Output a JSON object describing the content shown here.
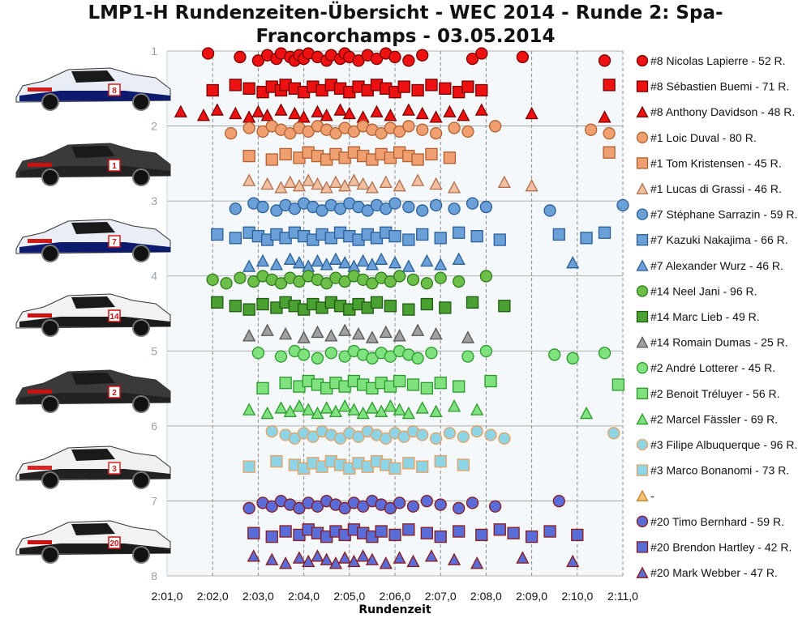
{
  "chart_data": {
    "type": "scatter",
    "title": "LMP1-H Rundenzeiten-Übersicht - WEC 2014 - Runde 2: Spa-Francorchamps - 03.05.2014",
    "title_lines": [
      "LMP1-H Rundenzeiten-Übersicht - WEC 2014 - Runde 2: Spa-",
      "Francorchamps - 03.05.2014"
    ],
    "xlabel": "Rundenzeit",
    "ylabel": "",
    "xlim": [
      121,
      131
    ],
    "ylim": [
      1,
      8
    ],
    "y_inverted": true,
    "grid": true,
    "legend_position": "right",
    "x_ticks": [
      {
        "value": 121,
        "label": "2:01,0"
      },
      {
        "value": 122,
        "label": "2:02,0"
      },
      {
        "value": 123,
        "label": "2:03,0"
      },
      {
        "value": 124,
        "label": "2:04,0"
      },
      {
        "value": 125,
        "label": "2:05,0"
      },
      {
        "value": 126,
        "label": "2:06,0"
      },
      {
        "value": 127,
        "label": "2:07,0"
      },
      {
        "value": 128,
        "label": "2:08,0"
      },
      {
        "value": 129,
        "label": "2:09,0"
      },
      {
        "value": 130,
        "label": "2:10,0"
      },
      {
        "value": 131,
        "label": "2:11,0"
      }
    ],
    "y_ticks": [
      {
        "value": 1,
        "label": "1"
      },
      {
        "value": 2,
        "label": "2"
      },
      {
        "value": 3,
        "label": "3"
      },
      {
        "value": 4,
        "label": "4"
      },
      {
        "value": 5,
        "label": "5"
      },
      {
        "value": 6,
        "label": "6"
      },
      {
        "value": 7,
        "label": "7"
      },
      {
        "value": 8,
        "label": "8"
      }
    ],
    "cars": [
      {
        "car": "#8",
        "stripe": "#0d1b6e",
        "accent": "#d11a1a",
        "body": "#e9eef6",
        "num": "8"
      },
      {
        "car": "#1",
        "stripe": "#222222",
        "accent": "#cc1111",
        "body": "#3a3a3a",
        "num": "1"
      },
      {
        "car": "#7",
        "stripe": "#0d1b6e",
        "accent": "#d11a1a",
        "body": "#e9eef6",
        "num": "7"
      },
      {
        "car": "#14",
        "stripe": "#1b1b1b",
        "accent": "#cc1111",
        "body": "#f2f2f2",
        "num": "14"
      },
      {
        "car": "#2",
        "stripe": "#222222",
        "accent": "#cc1111",
        "body": "#3a3a3a",
        "num": "2"
      },
      {
        "car": "#3",
        "stripe": "#222222",
        "accent": "#dd2222",
        "body": "#f0f0f0",
        "num": "3"
      },
      {
        "car": "#20",
        "stripe": "#1b1b1b",
        "accent": "#cc1111",
        "body": "#f2f2f2",
        "num": "20"
      }
    ],
    "series": [
      {
        "name": "#8 Nicolas Lapierre - 52 R.",
        "marker": "circle",
        "fill": "#ee1111",
        "stroke": "#770000",
        "y": 1.08,
        "x": [
          121.9,
          122.6,
          123.0,
          123.2,
          123.4,
          123.5,
          123.7,
          123.8,
          123.9,
          124.0,
          124.1,
          124.3,
          124.5,
          124.6,
          124.8,
          124.9,
          125.0,
          125.2,
          125.4,
          125.6,
          125.8,
          126.0,
          126.3,
          126.6,
          127.7,
          127.9,
          128.8,
          130.6
        ]
      },
      {
        "name": "#8 Sébastien Buemi - 71 R.",
        "marker": "square",
        "fill": "#ee1111",
        "stroke": "#770000",
        "y": 1.5,
        "x": [
          122.0,
          122.5,
          122.8,
          123.1,
          123.3,
          123.5,
          123.6,
          123.8,
          124.0,
          124.2,
          124.4,
          124.6,
          124.8,
          125.0,
          125.2,
          125.4,
          125.6,
          125.8,
          126.0,
          126.2,
          126.5,
          126.8,
          127.1,
          127.4,
          127.6,
          127.9,
          130.7
        ]
      },
      {
        "name": "#8 Anthony Davidson - 48 R.",
        "marker": "triangle",
        "fill": "#ee1111",
        "stroke": "#770000",
        "y": 1.83,
        "x": [
          121.3,
          121.8,
          122.1,
          122.5,
          122.8,
          123.0,
          123.2,
          123.5,
          123.8,
          124.0,
          124.3,
          124.5,
          124.8,
          125.0,
          125.3,
          125.6,
          125.9,
          126.3,
          126.6,
          126.9,
          127.2,
          127.5,
          127.9,
          129.0,
          130.6
        ]
      },
      {
        "name": "#1 Loic Duval - 80 R.",
        "marker": "circle",
        "fill": "#f0a070",
        "stroke": "#b06030",
        "y": 2.05,
        "x": [
          122.4,
          122.8,
          123.1,
          123.3,
          123.5,
          123.7,
          123.9,
          124.1,
          124.3,
          124.5,
          124.7,
          124.9,
          125.1,
          125.3,
          125.5,
          125.7,
          125.9,
          126.1,
          126.3,
          126.6,
          126.9,
          127.3,
          127.6,
          128.2,
          130.3,
          130.7
        ]
      },
      {
        "name": "#1 Tom Kristensen - 45 R.",
        "marker": "square",
        "fill": "#f0a070",
        "stroke": "#b06030",
        "y": 2.4,
        "x": [
          122.8,
          123.3,
          123.6,
          123.9,
          124.1,
          124.3,
          124.5,
          124.7,
          124.9,
          125.1,
          125.3,
          125.5,
          125.7,
          125.9,
          126.1,
          126.3,
          126.5,
          126.8,
          127.2,
          130.7
        ]
      },
      {
        "name": "#1 Lucas di Grassi - 46 R.",
        "marker": "triangle",
        "fill": "#f0c0a0",
        "stroke": "#b07050",
        "y": 2.77,
        "x": [
          122.8,
          123.2,
          123.5,
          123.7,
          123.9,
          124.1,
          124.3,
          124.5,
          124.7,
          124.9,
          125.1,
          125.3,
          125.5,
          125.8,
          126.1,
          126.5,
          126.9,
          127.3,
          128.4,
          129.0
        ]
      },
      {
        "name": "#7 Stéphane Sarrazin - 59 R.",
        "marker": "circle",
        "fill": "#6a9fd8",
        "stroke": "#2a5f98",
        "y": 3.08,
        "x": [
          122.5,
          122.9,
          123.1,
          123.4,
          123.6,
          123.8,
          124.0,
          124.2,
          124.4,
          124.6,
          124.8,
          125.0,
          125.2,
          125.4,
          125.6,
          125.8,
          126.0,
          126.3,
          126.6,
          126.9,
          127.3,
          127.7,
          128.0,
          129.4,
          131.0
        ]
      },
      {
        "name": "#7 Kazuki Nakajima - 66 R.",
        "marker": "square",
        "fill": "#6a9fd8",
        "stroke": "#2a5f98",
        "y": 3.47,
        "x": [
          122.1,
          122.5,
          122.8,
          123.0,
          123.2,
          123.4,
          123.6,
          123.8,
          124.0,
          124.2,
          124.4,
          124.6,
          124.8,
          125.0,
          125.2,
          125.4,
          125.6,
          125.8,
          126.0,
          126.3,
          126.6,
          127.0,
          127.4,
          127.8,
          128.3,
          129.6,
          130.2,
          130.6
        ]
      },
      {
        "name": "#7 Alexander Wurz - 46 R.",
        "marker": "triangle",
        "fill": "#6a9fd8",
        "stroke": "#2a5f98",
        "y": 3.82,
        "x": [
          122.8,
          123.1,
          123.4,
          123.7,
          123.9,
          124.1,
          124.3,
          124.5,
          124.7,
          124.9,
          125.1,
          125.3,
          125.5,
          125.7,
          126.0,
          126.3,
          126.7,
          127.0,
          127.4,
          129.9
        ]
      },
      {
        "name": "#14 Neel Jani - 96 R.",
        "marker": "circle",
        "fill": "#6cc04a",
        "stroke": "#2f7a1a",
        "y": 4.05,
        "x": [
          122.0,
          122.3,
          122.6,
          122.9,
          123.1,
          123.3,
          123.5,
          123.7,
          123.9,
          124.1,
          124.3,
          124.5,
          124.7,
          124.9,
          125.1,
          125.3,
          125.5,
          125.7,
          125.9,
          126.1,
          126.4,
          126.7,
          127.0,
          127.4,
          128.0
        ]
      },
      {
        "name": "#14 Marc Lieb - 49 R.",
        "marker": "square",
        "fill": "#4aa030",
        "stroke": "#1e5a10",
        "y": 4.4,
        "x": [
          122.1,
          122.5,
          122.8,
          123.1,
          123.4,
          123.6,
          123.8,
          124.0,
          124.2,
          124.4,
          124.6,
          124.8,
          125.0,
          125.2,
          125.4,
          125.6,
          125.9,
          126.3,
          126.7,
          127.1,
          127.7,
          128.4
        ]
      },
      {
        "name": "#14 Romain Dumas - 25 R.",
        "marker": "triangle",
        "fill": "#a0a0a0",
        "stroke": "#555555",
        "y": 4.77,
        "x": [
          122.8,
          123.2,
          123.6,
          124.0,
          124.3,
          124.6,
          124.9,
          125.2,
          125.5,
          125.8,
          126.1,
          126.5,
          126.9,
          127.6
        ]
      },
      {
        "name": "#2 André Lotterer - 45 R.",
        "marker": "circle",
        "fill": "#7fe27f",
        "stroke": "#2a9a2a",
        "y": 5.05,
        "x": [
          123.0,
          123.5,
          123.8,
          124.0,
          124.3,
          124.6,
          124.9,
          125.1,
          125.3,
          125.5,
          125.7,
          125.9,
          126.1,
          126.3,
          126.5,
          126.8,
          127.6,
          128.0,
          129.5,
          129.9,
          130.6
        ]
      },
      {
        "name": "#2 Benoit Tréluyer - 56 R.",
        "marker": "square",
        "fill": "#7fe27f",
        "stroke": "#2a9a2a",
        "y": 5.45,
        "x": [
          123.1,
          123.6,
          123.9,
          124.1,
          124.3,
          124.5,
          124.7,
          124.9,
          125.1,
          125.3,
          125.5,
          125.7,
          125.9,
          126.1,
          126.4,
          126.7,
          127.0,
          127.4,
          128.1,
          130.9
        ]
      },
      {
        "name": "#2 Marcel Fässler - 69 R.",
        "marker": "triangle",
        "fill": "#7fe27f",
        "stroke": "#2a9a2a",
        "y": 5.78,
        "x": [
          122.8,
          123.2,
          123.5,
          123.7,
          123.9,
          124.1,
          124.3,
          124.5,
          124.7,
          124.9,
          125.1,
          125.3,
          125.5,
          125.7,
          125.9,
          126.1,
          126.3,
          126.6,
          126.9,
          127.3,
          127.8,
          130.2
        ]
      },
      {
        "name": "#3 Filipe Albuquerque - 96 R.",
        "marker": "circle",
        "fill": "#8dd4e6",
        "stroke": "#e8a060",
        "y": 6.12,
        "x": [
          123.3,
          123.6,
          123.8,
          124.0,
          124.2,
          124.4,
          124.6,
          124.8,
          125.0,
          125.2,
          125.4,
          125.6,
          125.8,
          126.0,
          126.2,
          126.4,
          126.6,
          126.9,
          127.2,
          127.5,
          127.8,
          128.1,
          128.4,
          130.8
        ]
      },
      {
        "name": "#3 Marco Bonanomi - 73 R.",
        "marker": "square",
        "fill": "#8dd4e6",
        "stroke": "#e8a060",
        "y": 6.52,
        "x": [
          122.8,
          123.4,
          123.8,
          124.0,
          124.2,
          124.4,
          124.6,
          124.8,
          125.0,
          125.2,
          125.4,
          125.6,
          125.8,
          126.0,
          126.3,
          126.6,
          127.0,
          127.5
        ]
      },
      {
        "name": "-",
        "marker": "triangle",
        "fill": "#f5c070",
        "stroke": "#c08030",
        "y": 6.85,
        "x": []
      },
      {
        "name": "#20 Timo Bernhard - 59 R.",
        "marker": "circle",
        "fill": "#5a6cd8",
        "stroke": "#8a1a1a",
        "y": 7.05,
        "x": [
          122.8,
          123.1,
          123.3,
          123.5,
          123.7,
          123.9,
          124.1,
          124.3,
          124.5,
          124.7,
          124.9,
          125.1,
          125.3,
          125.5,
          125.7,
          125.9,
          126.1,
          126.4,
          126.7,
          127.0,
          127.4,
          127.7,
          128.2,
          129.6
        ]
      },
      {
        "name": "#20 Brendon Hartley - 42 R.",
        "marker": "square",
        "fill": "#5a6cd8",
        "stroke": "#8a1a1a",
        "y": 7.43,
        "x": [
          122.9,
          123.3,
          123.6,
          123.9,
          124.1,
          124.3,
          124.5,
          124.7,
          124.9,
          125.1,
          125.3,
          125.5,
          125.7,
          126.0,
          126.3,
          126.7,
          127.0,
          127.4,
          127.9,
          128.3,
          128.6,
          129.0,
          129.4,
          130.0
        ]
      },
      {
        "name": "#20 Mark Webber - 47 R.",
        "marker": "triangle",
        "fill": "#5a6cd8",
        "stroke": "#8a1a1a",
        "y": 7.78,
        "x": [
          122.9,
          123.3,
          123.6,
          123.9,
          124.1,
          124.3,
          124.5,
          124.7,
          124.9,
          125.1,
          125.3,
          125.5,
          125.8,
          126.1,
          126.4,
          126.8,
          127.3,
          127.8,
          128.8,
          129.9
        ]
      }
    ]
  }
}
